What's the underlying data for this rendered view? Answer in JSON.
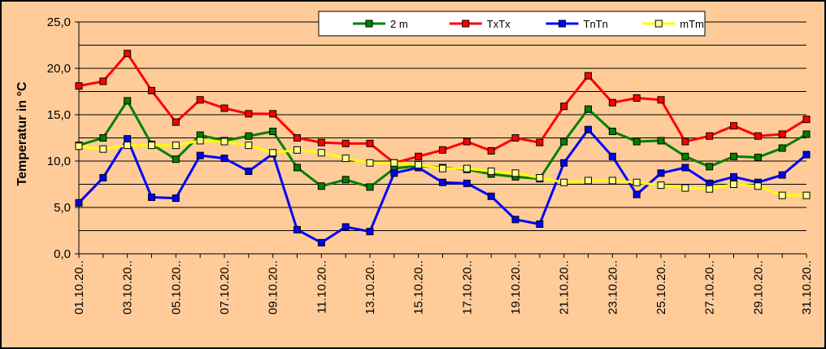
{
  "chart_data": {
    "type": "line",
    "ylabel": "Temperatur in °C",
    "ylim": [
      0,
      25
    ],
    "y_ticks": [
      "0,0",
      "5,0",
      "10,0",
      "15,0",
      "20,0",
      "25,0"
    ],
    "y_tick_values": [
      0,
      5,
      10,
      15,
      20,
      25
    ],
    "grid": "horizontal",
    "legend_position": "top",
    "x_tick_labels": [
      "01.10.20..",
      "03.10.20..",
      "05.10.20..",
      "07.10.20..",
      "09.10.20..",
      "11.10.20..",
      "13.10.20..",
      "15.10.20..",
      "17.10.20..",
      "19.10.20..",
      "21.10.20..",
      "23.10.20..",
      "25.10.20..",
      "27.10.20..",
      "29.10.20..",
      "31.10.20.."
    ],
    "x_tick_days": [
      1,
      3,
      5,
      7,
      9,
      11,
      13,
      15,
      17,
      19,
      21,
      23,
      25,
      27,
      29,
      31
    ],
    "x": [
      1,
      2,
      3,
      4,
      5,
      6,
      7,
      8,
      9,
      10,
      11,
      12,
      13,
      14,
      15,
      16,
      17,
      18,
      19,
      20,
      21,
      22,
      23,
      24,
      25,
      26,
      27,
      28,
      29,
      30,
      31
    ],
    "series": [
      {
        "name": "2 m",
        "color": "#008000",
        "marker_fill": "#008000",
        "values": [
          11.7,
          12.5,
          16.5,
          11.8,
          10.2,
          12.8,
          12.2,
          12.7,
          13.2,
          9.3,
          7.3,
          8.0,
          7.2,
          9.2,
          9.5,
          9.3,
          9.1,
          8.6,
          8.3,
          8.1,
          12.1,
          15.6,
          13.2,
          12.1,
          12.2,
          10.5,
          9.4,
          10.5,
          10.4,
          11.4,
          12.9
        ]
      },
      {
        "name": "TxTx",
        "color": "#FF0000",
        "marker_fill": "#FF0000",
        "values": [
          18.1,
          18.6,
          21.6,
          17.6,
          14.2,
          16.6,
          15.7,
          15.1,
          15.1,
          12.5,
          12.0,
          11.9,
          11.9,
          9.8,
          10.5,
          11.2,
          12.1,
          11.1,
          12.5,
          12.0,
          15.9,
          19.2,
          16.3,
          16.8,
          16.6,
          12.1,
          12.7,
          13.8,
          12.7,
          12.9,
          14.5
        ]
      },
      {
        "name": "TnTn",
        "color": "#0000FF",
        "marker_fill": "#0000FF",
        "values": [
          5.5,
          8.2,
          12.4,
          6.1,
          6.0,
          10.6,
          10.3,
          8.9,
          10.8,
          2.6,
          1.2,
          2.9,
          2.4,
          8.7,
          9.3,
          7.7,
          7.6,
          6.2,
          3.7,
          3.2,
          9.8,
          13.4,
          10.5,
          6.4,
          8.7,
          9.3,
          7.6,
          8.3,
          7.7,
          8.5,
          10.7
        ]
      },
      {
        "name": "mTm",
        "color": "#FFFF00",
        "marker_fill": "#FFFF99",
        "values": [
          11.6,
          11.3,
          11.7,
          11.7,
          11.7,
          12.2,
          12.1,
          11.7,
          10.9,
          11.2,
          10.9,
          10.3,
          9.8,
          9.8,
          9.6,
          9.2,
          9.2,
          8.9,
          8.7,
          8.2,
          7.7,
          7.9,
          7.9,
          7.7,
          7.4,
          7.1,
          7.0,
          7.5,
          7.3,
          6.3,
          6.3
        ]
      }
    ]
  }
}
